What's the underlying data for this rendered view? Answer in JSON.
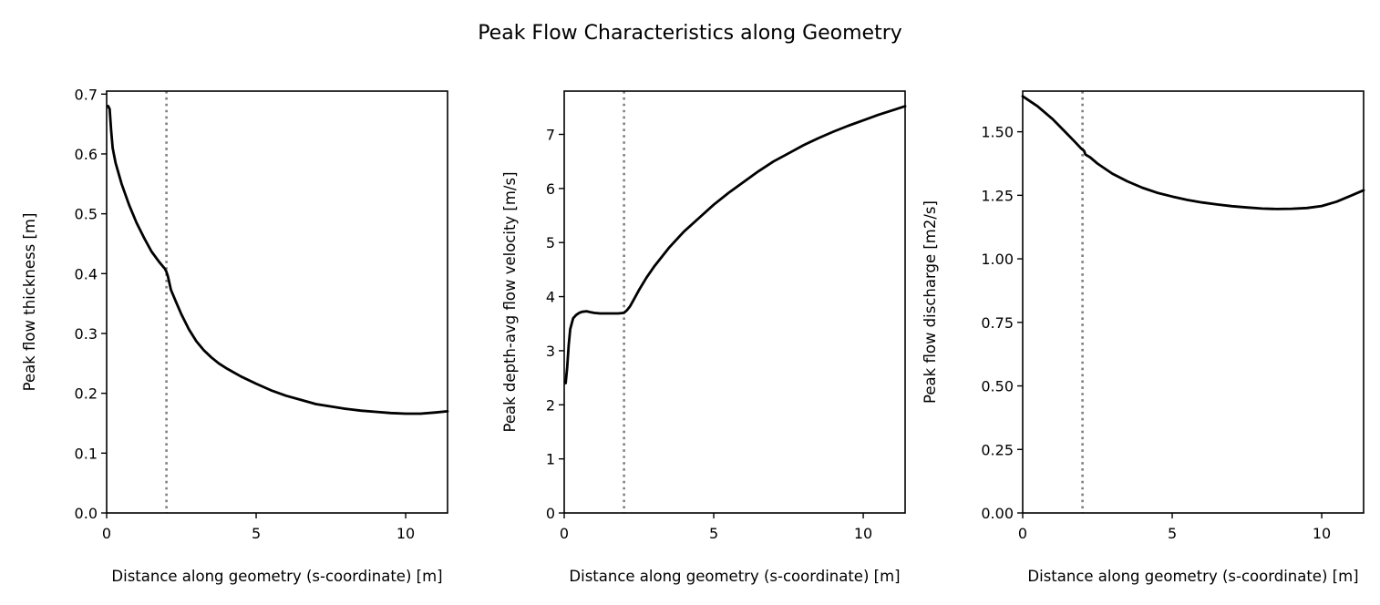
{
  "figure": {
    "title": "Peak Flow Characteristics along Geometry"
  },
  "chart_data": [
    {
      "type": "line",
      "xlabel": "Distance along geometry (s-coordinate) [m]",
      "ylabel": "Peak flow thickness [m]",
      "xlim": [
        0,
        11.4
      ],
      "ylim": [
        0,
        0.705
      ],
      "xticks": [
        0,
        5,
        10
      ],
      "yticks": [
        0.0,
        0.1,
        0.2,
        0.3,
        0.4,
        0.5,
        0.6,
        0.7
      ],
      "ytick_labels": [
        "0.0",
        "0.1",
        "0.2",
        "0.3",
        "0.4",
        "0.5",
        "0.6",
        "0.7"
      ],
      "vline_x": 2.0,
      "x": [
        0.05,
        0.1,
        0.15,
        0.2,
        0.3,
        0.5,
        0.75,
        1.0,
        1.25,
        1.5,
        1.75,
        1.95,
        2.0,
        2.05,
        2.15,
        2.3,
        2.5,
        2.75,
        3.0,
        3.25,
        3.5,
        3.75,
        4.0,
        4.5,
        5.0,
        5.5,
        6.0,
        6.5,
        7.0,
        7.5,
        8.0,
        8.5,
        9.0,
        9.5,
        10.0,
        10.5,
        11.0,
        11.4
      ],
      "y": [
        0.68,
        0.675,
        0.64,
        0.61,
        0.585,
        0.55,
        0.515,
        0.485,
        0.46,
        0.437,
        0.42,
        0.408,
        0.403,
        0.395,
        0.373,
        0.355,
        0.332,
        0.307,
        0.287,
        0.272,
        0.26,
        0.25,
        0.242,
        0.228,
        0.216,
        0.205,
        0.196,
        0.189,
        0.182,
        0.178,
        0.174,
        0.171,
        0.169,
        0.167,
        0.166,
        0.166,
        0.168,
        0.17
      ],
      "series_color": "#000000",
      "vline_color": "#808080"
    },
    {
      "type": "line",
      "xlabel": "Distance along geometry (s-coordinate) [m]",
      "ylabel": "Peak depth-avg flow velocity [m/s]",
      "xlim": [
        0,
        11.4
      ],
      "ylim": [
        0,
        7.8
      ],
      "xticks": [
        0,
        5,
        10
      ],
      "yticks": [
        0,
        1,
        2,
        3,
        4,
        5,
        6,
        7
      ],
      "ytick_labels": [
        "0",
        "1",
        "2",
        "3",
        "4",
        "5",
        "6",
        "7"
      ],
      "vline_x": 2.0,
      "x": [
        0.05,
        0.1,
        0.15,
        0.2,
        0.3,
        0.4,
        0.5,
        0.6,
        0.75,
        0.9,
        1.0,
        1.2,
        1.5,
        1.8,
        2.0,
        2.1,
        2.2,
        2.3,
        2.5,
        2.75,
        3.0,
        3.5,
        4.0,
        4.5,
        5.0,
        5.5,
        6.0,
        6.5,
        7.0,
        7.5,
        8.0,
        8.5,
        9.0,
        9.5,
        10.0,
        10.5,
        11.0,
        11.4
      ],
      "y": [
        2.4,
        2.7,
        3.1,
        3.4,
        3.6,
        3.66,
        3.7,
        3.72,
        3.73,
        3.71,
        3.7,
        3.69,
        3.69,
        3.69,
        3.7,
        3.75,
        3.82,
        3.92,
        4.12,
        4.35,
        4.55,
        4.9,
        5.2,
        5.45,
        5.7,
        5.92,
        6.12,
        6.32,
        6.5,
        6.65,
        6.8,
        6.93,
        7.05,
        7.16,
        7.26,
        7.36,
        7.45,
        7.52
      ],
      "series_color": "#000000",
      "vline_color": "#808080"
    },
    {
      "type": "line",
      "xlabel": "Distance along geometry (s-coordinate) [m]",
      "ylabel": "Peak flow discharge [m2/s]",
      "xlim": [
        0,
        11.4
      ],
      "ylim": [
        0,
        1.66
      ],
      "xticks": [
        0,
        5,
        10
      ],
      "yticks": [
        0.0,
        0.25,
        0.5,
        0.75,
        1.0,
        1.25,
        1.5
      ],
      "ytick_labels": [
        "0.00",
        "0.25",
        "0.50",
        "0.75",
        "1.00",
        "1.25",
        "1.50"
      ],
      "vline_x": 2.0,
      "x": [
        0.0,
        0.25,
        0.5,
        0.75,
        1.0,
        1.25,
        1.5,
        1.75,
        1.95,
        2.0,
        2.05,
        2.1,
        2.25,
        2.5,
        3.0,
        3.5,
        4.0,
        4.5,
        5.0,
        5.5,
        6.0,
        6.5,
        7.0,
        7.5,
        8.0,
        8.5,
        9.0,
        9.5,
        10.0,
        10.5,
        11.0,
        11.4
      ],
      "y": [
        1.64,
        1.62,
        1.6,
        1.575,
        1.55,
        1.52,
        1.49,
        1.46,
        1.435,
        1.43,
        1.425,
        1.41,
        1.4,
        1.375,
        1.335,
        1.305,
        1.28,
        1.26,
        1.245,
        1.232,
        1.222,
        1.214,
        1.207,
        1.202,
        1.198,
        1.196,
        1.197,
        1.2,
        1.208,
        1.225,
        1.25,
        1.27
      ],
      "series_color": "#000000",
      "vline_color": "#808080"
    }
  ]
}
